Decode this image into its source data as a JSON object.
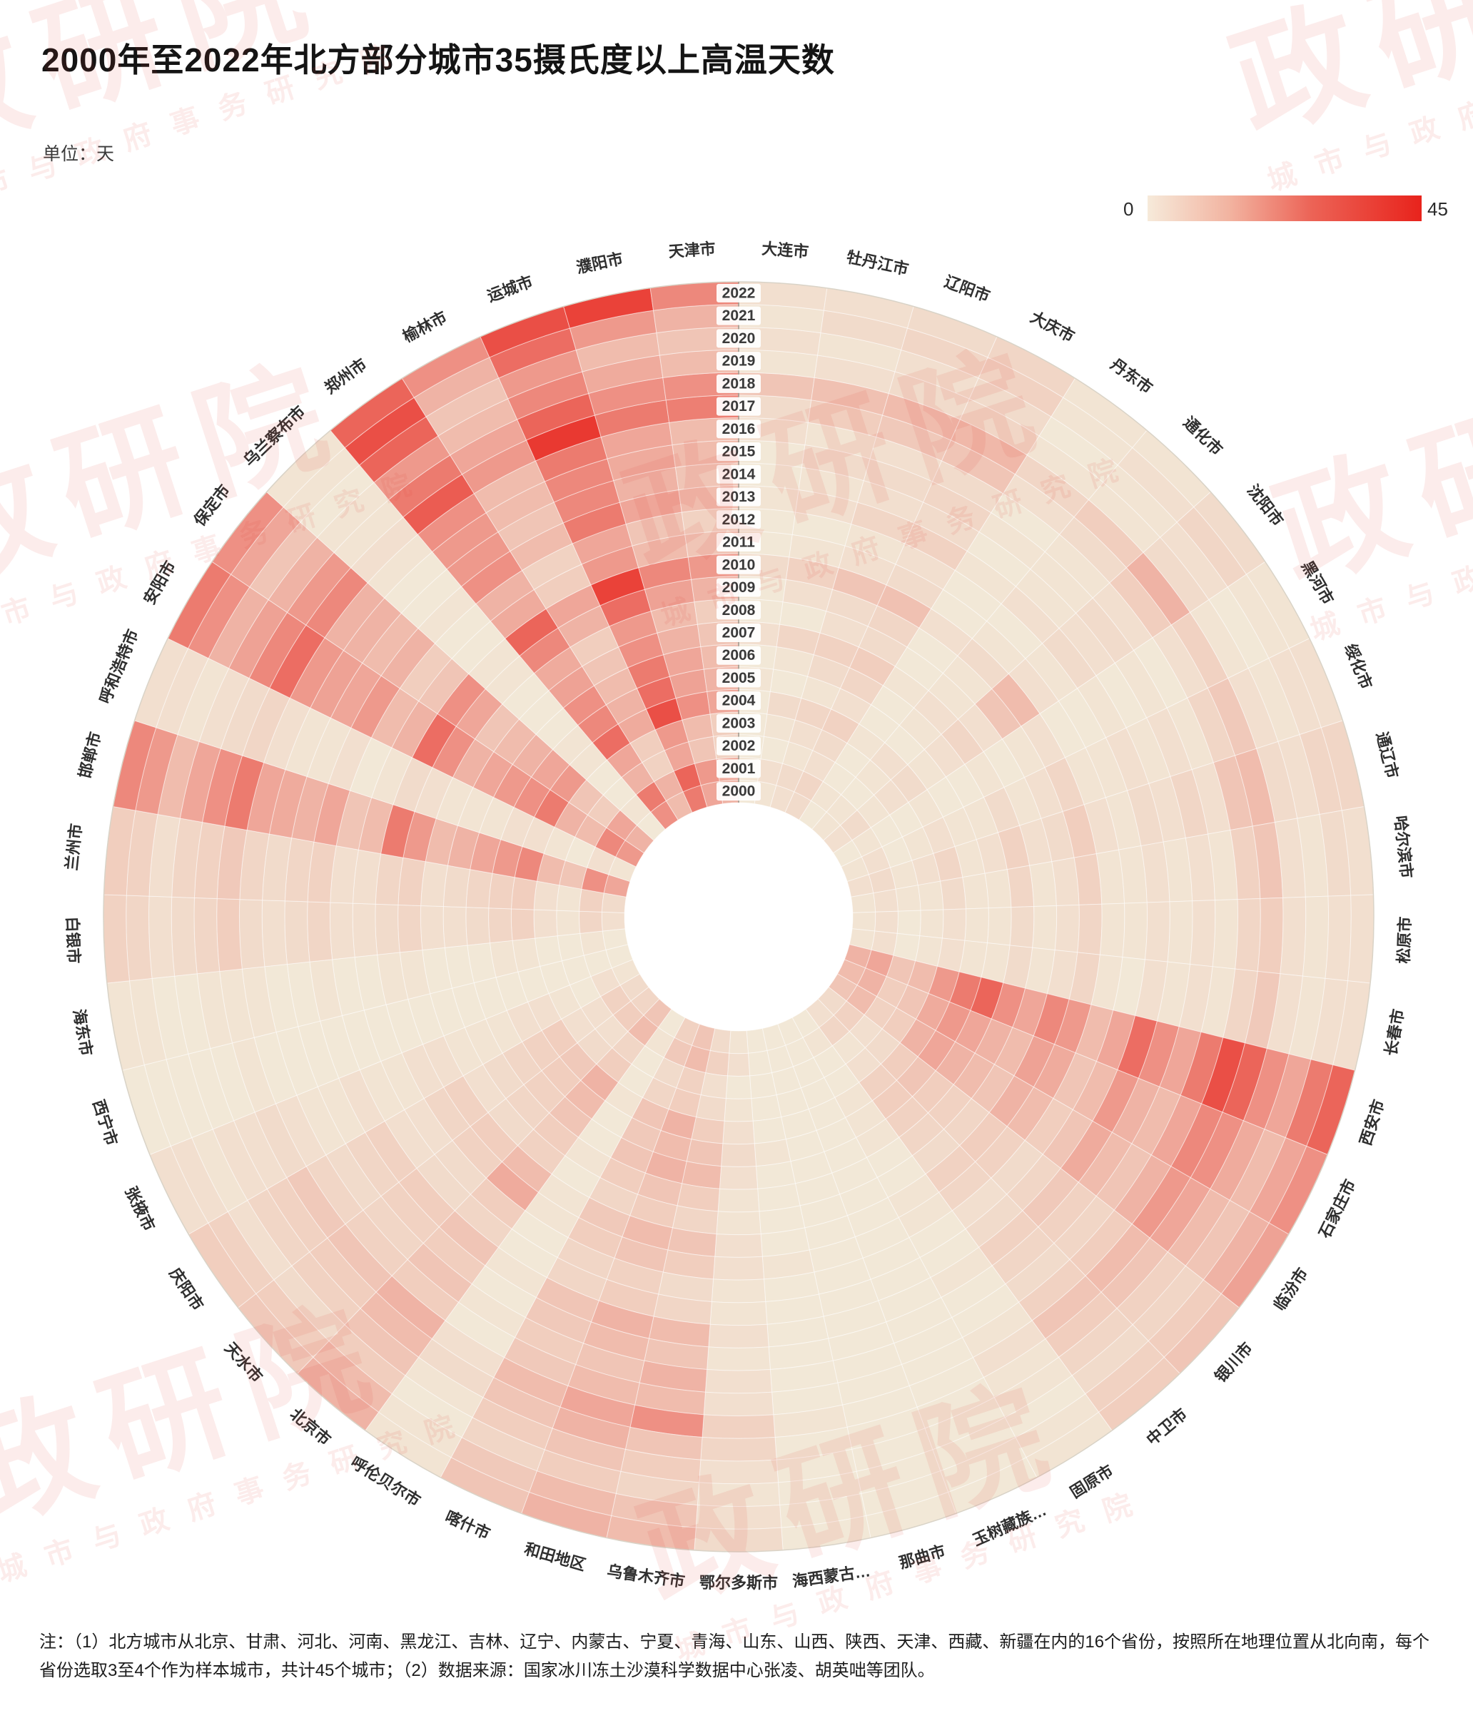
{
  "page": {
    "title": "2000年至2022年北方部分城市35摄氏度以上高温天数",
    "unit_label": "单位：天"
  },
  "legend": {
    "min_label": "0",
    "max_label": "45"
  },
  "watermark": {
    "big": "政研院",
    "small": "城市与政府事务研究院"
  },
  "note": {
    "text": "注：（1）北方城市从北京、甘肃、河北、河南、黑龙江、吉林、辽宁、内蒙古、宁夏、青海、山东、山西、陕西、天津、西藏、新疆在内的16个省份，按照所在地理位置从北向南，每个省份选取3至4个作为样本城市，共计45个城市；（2）数据来源：国家冰川冻土沙漠科学数据中心张凌、胡英咄等团队。"
  },
  "chart_data": {
    "type": "heatmap",
    "subtype": "radial",
    "title": "2000年至2022年北方部分城市35摄氏度以上高温天数",
    "unit": "天",
    "value_range": [
      0,
      45
    ],
    "color_zero": "#F2E8D7",
    "color_max": "#E8231C",
    "legend_position": "top-right",
    "rings": "years 2000 (inner) to 2022 (outer), labels drawn at 12 o'clock",
    "years": [
      2000,
      2001,
      2002,
      2003,
      2004,
      2005,
      2006,
      2007,
      2008,
      2009,
      2010,
      2011,
      2012,
      2013,
      2014,
      2015,
      2016,
      2017,
      2018,
      2019,
      2020,
      2021,
      2022
    ],
    "cities": [
      {
        "name": "大连市",
        "values": [
          0,
          1,
          0,
          0,
          0,
          1,
          0,
          2,
          0,
          0,
          3,
          0,
          0,
          1,
          0,
          0,
          2,
          3,
          8,
          1,
          2,
          1,
          2
        ]
      },
      {
        "name": "牡丹江市",
        "values": [
          1,
          2,
          0,
          1,
          3,
          0,
          1,
          4,
          0,
          2,
          5,
          1,
          0,
          2,
          1,
          3,
          1,
          6,
          9,
          2,
          1,
          3,
          2
        ]
      },
      {
        "name": "辽阳市",
        "values": [
          2,
          3,
          1,
          2,
          4,
          1,
          3,
          5,
          2,
          3,
          8,
          2,
          1,
          4,
          2,
          3,
          2,
          7,
          10,
          3,
          2,
          4,
          3
        ]
      },
      {
        "name": "大庆市",
        "values": [
          3,
          4,
          2,
          3,
          5,
          2,
          4,
          6,
          3,
          4,
          9,
          3,
          2,
          5,
          3,
          4,
          3,
          8,
          11,
          4,
          3,
          5,
          4
        ]
      },
      {
        "name": "丹东市",
        "values": [
          0,
          1,
          0,
          0,
          1,
          0,
          0,
          1,
          0,
          0,
          2,
          0,
          0,
          1,
          0,
          1,
          0,
          2,
          4,
          1,
          0,
          1,
          1
        ]
      },
      {
        "name": "通化市",
        "values": [
          1,
          1,
          0,
          1,
          2,
          0,
          1,
          2,
          1,
          1,
          3,
          1,
          0,
          2,
          1,
          1,
          1,
          3,
          6,
          1,
          1,
          2,
          1
        ]
      },
      {
        "name": "沈阳市",
        "values": [
          2,
          3,
          1,
          2,
          3,
          1,
          2,
          4,
          2,
          8,
          10,
          2,
          1,
          3,
          2,
          3,
          2,
          6,
          12,
          3,
          2,
          4,
          3
        ]
      },
      {
        "name": "黑河市",
        "values": [
          0,
          1,
          0,
          0,
          1,
          0,
          0,
          1,
          0,
          1,
          2,
          0,
          0,
          1,
          0,
          1,
          0,
          2,
          5,
          1,
          0,
          1,
          1
        ]
      },
      {
        "name": "绥化市",
        "values": [
          1,
          2,
          0,
          1,
          2,
          1,
          1,
          3,
          1,
          2,
          4,
          1,
          1,
          2,
          1,
          2,
          1,
          4,
          7,
          2,
          1,
          2,
          2
        ]
      },
      {
        "name": "通辽市",
        "values": [
          2,
          3,
          1,
          2,
          4,
          1,
          2,
          5,
          2,
          3,
          6,
          2,
          1,
          3,
          2,
          4,
          2,
          8,
          10,
          3,
          2,
          4,
          4
        ]
      },
      {
        "name": "哈尔滨市",
        "values": [
          1,
          2,
          1,
          1,
          3,
          1,
          1,
          4,
          1,
          2,
          5,
          1,
          1,
          2,
          1,
          2,
          1,
          5,
          8,
          2,
          1,
          3,
          2
        ]
      },
      {
        "name": "松原市",
        "values": [
          1,
          2,
          0,
          1,
          2,
          1,
          1,
          3,
          1,
          2,
          4,
          1,
          1,
          2,
          1,
          2,
          1,
          4,
          6,
          2,
          1,
          2,
          2
        ]
      },
      {
        "name": "长春市",
        "values": [
          1,
          2,
          0,
          1,
          2,
          1,
          1,
          3,
          1,
          2,
          4,
          1,
          0,
          2,
          1,
          2,
          1,
          4,
          7,
          2,
          1,
          2,
          2
        ]
      },
      {
        "name": "西安市",
        "values": [
          12,
          15,
          8,
          10,
          18,
          25,
          30,
          20,
          15,
          22,
          18,
          10,
          15,
          28,
          20,
          15,
          25,
          35,
          30,
          20,
          15,
          25,
          30
        ]
      },
      {
        "name": "石家庄市",
        "values": [
          10,
          12,
          6,
          8,
          14,
          18,
          15,
          12,
          10,
          16,
          14,
          8,
          10,
          18,
          12,
          10,
          15,
          22,
          20,
          14,
          10,
          15,
          20
        ]
      },
      {
        "name": "临汾市",
        "values": [
          8,
          10,
          5,
          6,
          12,
          15,
          12,
          10,
          8,
          12,
          10,
          6,
          8,
          14,
          10,
          8,
          12,
          18,
          15,
          10,
          8,
          12,
          16
        ]
      },
      {
        "name": "银川市",
        "values": [
          3,
          5,
          2,
          3,
          6,
          8,
          6,
          5,
          4,
          6,
          5,
          3,
          4,
          7,
          5,
          4,
          6,
          10,
          8,
          5,
          4,
          6,
          8
        ]
      },
      {
        "name": "中卫市",
        "values": [
          2,
          4,
          1,
          2,
          5,
          6,
          5,
          4,
          3,
          5,
          4,
          2,
          3,
          5,
          4,
          3,
          5,
          8,
          6,
          4,
          3,
          5,
          6
        ]
      },
      {
        "name": "固原市",
        "values": [
          0,
          1,
          0,
          0,
          1,
          1,
          1,
          0,
          0,
          1,
          1,
          0,
          0,
          1,
          0,
          0,
          1,
          2,
          1,
          1,
          0,
          1,
          1
        ]
      },
      {
        "name": "玉树藏族…",
        "values": [
          0,
          0,
          0,
          0,
          0,
          0,
          0,
          0,
          0,
          0,
          0,
          0,
          0,
          0,
          0,
          0,
          0,
          0,
          0,
          0,
          0,
          0,
          0
        ]
      },
      {
        "name": "那曲市",
        "values": [
          0,
          0,
          0,
          0,
          0,
          0,
          0,
          0,
          0,
          0,
          0,
          0,
          0,
          0,
          0,
          0,
          0,
          0,
          0,
          0,
          0,
          0,
          0
        ]
      },
      {
        "name": "海西蒙古…",
        "values": [
          0,
          0,
          0,
          0,
          0,
          1,
          0,
          0,
          0,
          0,
          1,
          0,
          0,
          0,
          0,
          0,
          0,
          1,
          0,
          0,
          0,
          0,
          0
        ]
      },
      {
        "name": "鄂尔多斯市",
        "values": [
          1,
          2,
          0,
          1,
          2,
          3,
          2,
          1,
          1,
          2,
          2,
          1,
          1,
          2,
          1,
          2,
          2,
          5,
          4,
          2,
          1,
          2,
          3
        ]
      },
      {
        "name": "乌鲁木齐市",
        "values": [
          3,
          5,
          2,
          3,
          6,
          8,
          10,
          6,
          4,
          8,
          6,
          3,
          4,
          10,
          8,
          12,
          10,
          20,
          8,
          6,
          4,
          8,
          10
        ]
      },
      {
        "name": "和田地区",
        "values": [
          8,
          10,
          5,
          6,
          12,
          10,
          12,
          8,
          6,
          10,
          8,
          5,
          6,
          12,
          10,
          8,
          10,
          15,
          12,
          8,
          6,
          10,
          12
        ]
      },
      {
        "name": "喀什市",
        "values": [
          5,
          7,
          3,
          4,
          8,
          7,
          8,
          6,
          4,
          7,
          6,
          4,
          4,
          8,
          7,
          6,
          7,
          10,
          8,
          6,
          4,
          7,
          8
        ]
      },
      {
        "name": "呼伦贝尔市",
        "values": [
          0,
          1,
          0,
          0,
          1,
          0,
          0,
          1,
          0,
          1,
          1,
          0,
          0,
          1,
          0,
          1,
          0,
          2,
          3,
          1,
          0,
          1,
          1
        ]
      },
      {
        "name": "北京市",
        "values": [
          8,
          10,
          4,
          6,
          12,
          10,
          8,
          6,
          5,
          10,
          14,
          6,
          4,
          8,
          6,
          8,
          6,
          12,
          10,
          8,
          6,
          10,
          12
        ]
      },
      {
        "name": "天水市",
        "values": [
          4,
          6,
          2,
          3,
          7,
          6,
          5,
          4,
          3,
          6,
          5,
          3,
          3,
          6,
          5,
          4,
          5,
          8,
          6,
          5,
          3,
          6,
          7
        ]
      },
      {
        "name": "庆阳市",
        "values": [
          3,
          5,
          2,
          2,
          6,
          5,
          4,
          3,
          2,
          5,
          4,
          2,
          2,
          5,
          4,
          3,
          4,
          7,
          5,
          4,
          2,
          5,
          6
        ]
      },
      {
        "name": "张掖市",
        "values": [
          1,
          2,
          0,
          1,
          2,
          2,
          1,
          1,
          1,
          2,
          2,
          1,
          1,
          2,
          1,
          1,
          2,
          3,
          2,
          2,
          1,
          2,
          2
        ]
      },
      {
        "name": "西宁市",
        "values": [
          0,
          0,
          0,
          0,
          0,
          0,
          0,
          0,
          0,
          0,
          0,
          0,
          0,
          0,
          0,
          0,
          0,
          1,
          0,
          0,
          0,
          0,
          0
        ]
      },
      {
        "name": "海东市",
        "values": [
          0,
          1,
          0,
          0,
          1,
          1,
          0,
          0,
          0,
          1,
          1,
          0,
          0,
          1,
          0,
          0,
          1,
          1,
          1,
          0,
          0,
          1,
          1
        ]
      },
      {
        "name": "白银市",
        "values": [
          2,
          4,
          1,
          2,
          5,
          4,
          3,
          2,
          2,
          4,
          3,
          2,
          2,
          4,
          3,
          2,
          3,
          6,
          4,
          3,
          2,
          4,
          5
        ]
      },
      {
        "name": "兰州市",
        "values": [
          3,
          5,
          1,
          2,
          6,
          5,
          4,
          3,
          2,
          5,
          4,
          2,
          2,
          5,
          4,
          3,
          4,
          7,
          5,
          4,
          2,
          5,
          6
        ]
      },
      {
        "name": "邯郸市",
        "values": [
          15,
          20,
          8,
          10,
          22,
          18,
          15,
          12,
          10,
          18,
          25,
          10,
          8,
          15,
          12,
          14,
          15,
          25,
          20,
          15,
          10,
          18,
          22
        ]
      },
      {
        "name": "呼和浩特市",
        "values": [
          1,
          2,
          0,
          1,
          2,
          2,
          1,
          1,
          1,
          2,
          3,
          1,
          0,
          2,
          1,
          1,
          2,
          4,
          3,
          2,
          1,
          2,
          2
        ]
      },
      {
        "name": "安阳市",
        "values": [
          18,
          22,
          10,
          12,
          25,
          20,
          18,
          15,
          12,
          20,
          28,
          12,
          10,
          18,
          15,
          16,
          18,
          28,
          22,
          16,
          12,
          20,
          25
        ]
      },
      {
        "name": "保定市",
        "values": [
          12,
          15,
          6,
          8,
          18,
          15,
          12,
          10,
          8,
          15,
          20,
          8,
          6,
          12,
          10,
          12,
          12,
          22,
          18,
          12,
          8,
          15,
          20
        ]
      },
      {
        "name": "乌兰察布市",
        "values": [
          0,
          1,
          0,
          0,
          1,
          1,
          0,
          0,
          0,
          1,
          1,
          0,
          0,
          1,
          0,
          0,
          1,
          2,
          1,
          1,
          0,
          1,
          1
        ]
      },
      {
        "name": "郑州市",
        "values": [
          20,
          25,
          12,
          15,
          28,
          22,
          20,
          16,
          14,
          22,
          30,
          14,
          12,
          20,
          18,
          18,
          20,
          32,
          25,
          18,
          30,
          35,
          30
        ]
      },
      {
        "name": "榆林市",
        "values": [
          10,
          12,
          5,
          6,
          14,
          12,
          10,
          8,
          6,
          12,
          15,
          6,
          5,
          10,
          8,
          10,
          10,
          18,
          15,
          10,
          8,
          12,
          20
        ]
      },
      {
        "name": "运城市",
        "values": [
          25,
          30,
          15,
          18,
          35,
          28,
          25,
          20,
          18,
          28,
          38,
          18,
          15,
          25,
          22,
          22,
          25,
          40,
          30,
          22,
          18,
          28,
          35
        ]
      },
      {
        "name": "濮阳市",
        "values": [
          15,
          18,
          8,
          10,
          20,
          16,
          15,
          12,
          10,
          16,
          22,
          10,
          8,
          15,
          12,
          14,
          15,
          25,
          20,
          14,
          10,
          18,
          38
        ]
      },
      {
        "name": "天津市",
        "values": [
          12,
          14,
          5,
          6,
          15,
          12,
          10,
          8,
          6,
          12,
          18,
          8,
          5,
          10,
          8,
          10,
          10,
          24,
          20,
          10,
          8,
          12,
          22
        ]
      }
    ]
  }
}
